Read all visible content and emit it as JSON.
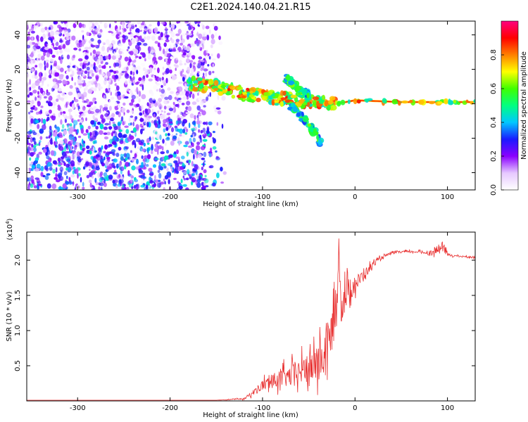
{
  "title": "C2E1.2024.140.04.21.R15",
  "chart_data": [
    {
      "type": "heatmap",
      "name": "spectrogram",
      "xlabel": "Height of straight line (km)",
      "ylabel": "Frequency (Hz)",
      "xlim": [
        -355,
        130
      ],
      "ylim": [
        -50,
        48
      ],
      "x_ticks": [
        -300,
        -200,
        -100,
        0,
        100
      ],
      "x_tick_labels": [
        "-300",
        "-200",
        "-100",
        "0",
        "100"
      ],
      "y_ticks": [
        -40,
        -20,
        0,
        20,
        40
      ],
      "y_tick_labels": [
        "-40",
        "-20",
        "0",
        "20",
        "40"
      ],
      "colorbar": {
        "label": "Normalized spectral amplitude",
        "range": [
          0,
          1
        ],
        "ticks": [
          0.0,
          0.2,
          0.4,
          0.6,
          0.8
        ],
        "tick_labels": [
          "0.0",
          "0.2",
          "0.4",
          "0.6",
          "0.8"
        ],
        "colors": [
          "#ffffff",
          "#e6c8ff",
          "#8a00ff",
          "#1a1aff",
          "#00c8ff",
          "#00ff80",
          "#40ff00",
          "#ffff00",
          "#ff8000",
          "#ff0000",
          "#ff007f"
        ]
      },
      "features": [
        {
          "region": "noise",
          "x_range": [
            -355,
            -140
          ],
          "y_range": [
            -50,
            48
          ],
          "amplitude": 0.15
        },
        {
          "region": "main trace",
          "x": [
            -180,
            -150,
            -120,
            -100,
            -80,
            -60,
            -45,
            -30,
            -10,
            0,
            50,
            100,
            130
          ],
          "y": [
            12,
            10,
            6,
            4,
            3,
            2,
            1,
            0,
            1,
            2,
            1,
            1,
            1
          ],
          "amplitude": 0.7
        },
        {
          "region": "lower branch",
          "x": [
            -70,
            -60,
            -50,
            -42,
            -36
          ],
          "y": [
            -1,
            -6,
            -12,
            -18,
            -24
          ],
          "amplitude": 0.5
        },
        {
          "region": "upper branch",
          "x": [
            -75,
            -68,
            -60,
            -50
          ],
          "y": [
            15,
            12,
            8,
            5
          ],
          "amplitude": 0.5
        }
      ]
    },
    {
      "type": "line",
      "name": "snr",
      "xlabel": "Height of straight line (km)",
      "ylabel": "SNR (10 * v/v)",
      "y_multiplier": "(x10^4)",
      "xlim": [
        -355,
        130
      ],
      "ylim": [
        0,
        2.4
      ],
      "x_ticks": [
        -300,
        -200,
        -100,
        0,
        100
      ],
      "x_tick_labels": [
        "-300",
        "-200",
        "-100",
        "0",
        "100"
      ],
      "y_ticks": [
        0.5,
        1.0,
        1.5,
        2.0
      ],
      "y_tick_labels": [
        "0.5",
        "1.0",
        "1.5",
        "2.0"
      ],
      "series": [
        {
          "color": "#e83030",
          "x": [
            -355,
            -300,
            -250,
            -200,
            -150,
            -120,
            -110,
            -100,
            -90,
            -80,
            -70,
            -60,
            -50,
            -45,
            -40,
            -35,
            -30,
            -25,
            -20,
            -17,
            -15,
            -12,
            -10,
            -5,
            0,
            10,
            20,
            30,
            40,
            50,
            60,
            70,
            80,
            90,
            95,
            100,
            110,
            120,
            130
          ],
          "y": [
            0.01,
            0.01,
            0.01,
            0.01,
            0.01,
            0.03,
            0.12,
            0.22,
            0.28,
            0.32,
            0.35,
            0.42,
            0.45,
            0.5,
            0.55,
            0.6,
            0.8,
            1.0,
            1.3,
            2.2,
            1.35,
            1.45,
            1.5,
            1.6,
            1.65,
            1.8,
            1.95,
            2.05,
            2.1,
            2.12,
            2.12,
            2.12,
            2.1,
            2.15,
            2.2,
            2.08,
            2.06,
            2.05,
            2.04
          ],
          "noise_amplitude": [
            0,
            0,
            0,
            0,
            0,
            0.02,
            0.08,
            0.15,
            0.2,
            0.25,
            0.3,
            0.35,
            0.4,
            0.5,
            0.6,
            0.6,
            0.6,
            0.6,
            0.5,
            0.3,
            0.5,
            0.5,
            0.4,
            0.35,
            0.25,
            0.15,
            0.08,
            0.04,
            0.03,
            0.03,
            0.03,
            0.03,
            0.05,
            0.12,
            0.15,
            0.05,
            0.02,
            0.02,
            0.02
          ]
        }
      ]
    }
  ]
}
